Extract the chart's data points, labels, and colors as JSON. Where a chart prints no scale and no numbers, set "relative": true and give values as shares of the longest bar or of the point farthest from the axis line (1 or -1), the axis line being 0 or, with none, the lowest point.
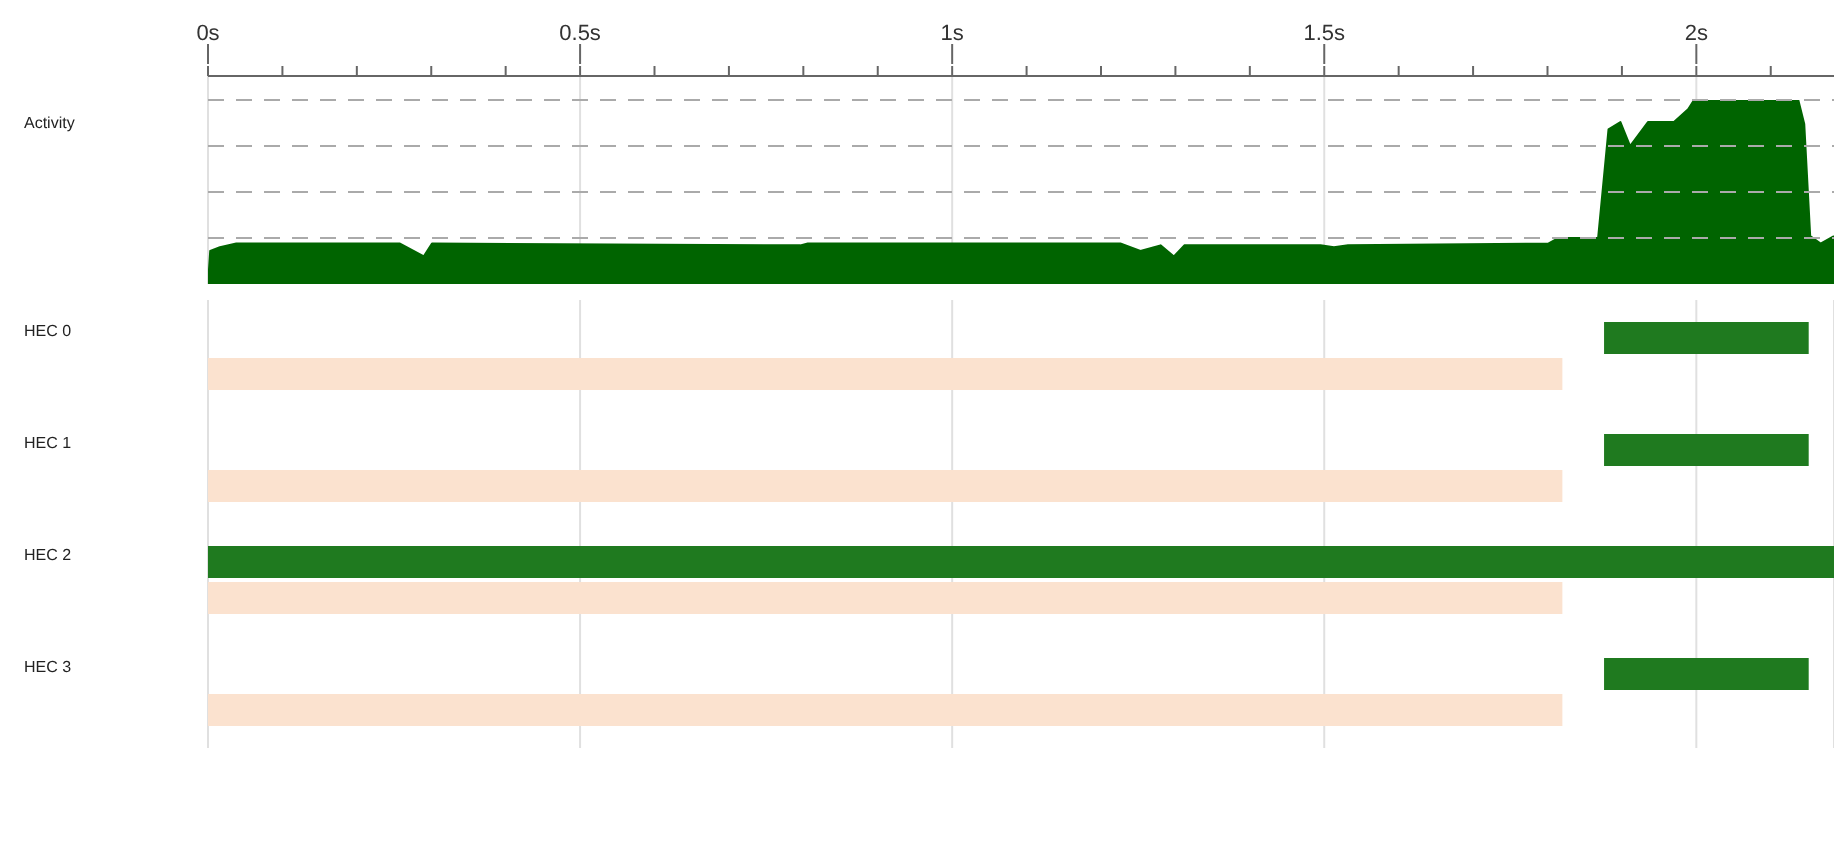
{
  "chart_data": [
    {
      "type": "area",
      "ylabel": "Activity",
      "relative": true,
      "grid": "x",
      "color": "#006400",
      "x": [
        0,
        0.003,
        0.016,
        0.038,
        0.258,
        0.29,
        0.301,
        0.796,
        0.806,
        1.0,
        1.226,
        1.253,
        1.28,
        1.298,
        1.312,
        1.495,
        1.513,
        1.532,
        1.801,
        1.815,
        1.868,
        1.882,
        1.898,
        1.911,
        1.935,
        1.97,
        1.989,
        1.997,
        2.137,
        2.145,
        2.153,
        2.167,
        2.185
      ],
      "values": [
        0,
        0.18,
        0.2,
        0.22,
        0.22,
        0.15,
        0.22,
        0.21,
        0.22,
        0.22,
        0.22,
        0.18,
        0.21,
        0.15,
        0.21,
        0.21,
        0.2,
        0.21,
        0.22,
        0.25,
        0.25,
        0.84,
        0.88,
        0.75,
        0.88,
        0.88,
        0.95,
        1.0,
        1.0,
        0.87,
        0.26,
        0.22,
        0.26
      ],
      "xlim": [
        0,
        2.185
      ],
      "xticks": [
        {
          "value": 0,
          "label": "0s"
        },
        {
          "value": 0.1,
          "label": null
        },
        {
          "value": 0.2,
          "label": null
        },
        {
          "value": 0.3,
          "label": null
        },
        {
          "value": 0.4,
          "label": null
        },
        {
          "value": 0.5,
          "label": "0.5s"
        },
        {
          "value": 0.6,
          "label": null
        },
        {
          "value": 0.7,
          "label": null
        },
        {
          "value": 0.8,
          "label": null
        },
        {
          "value": 0.9,
          "label": null
        },
        {
          "value": 1,
          "label": "1s"
        },
        {
          "value": 1.1,
          "label": null
        },
        {
          "value": 1.2,
          "label": null
        },
        {
          "value": 1.3,
          "label": null
        },
        {
          "value": 1.4,
          "label": null
        },
        {
          "value": 1.5,
          "label": "1.5s"
        },
        {
          "value": 1.6,
          "label": null
        },
        {
          "value": 1.7,
          "label": null
        },
        {
          "value": 1.8,
          "label": null
        },
        {
          "value": 1.9,
          "label": null
        },
        {
          "value": 2,
          "label": "2s"
        },
        {
          "value": 2.1,
          "label": null
        }
      ],
      "ref_lines": [
        {
          "axis": "y",
          "value": 0.25,
          "color": "#aaaaaa",
          "line_style": "dashed"
        },
        {
          "axis": "y",
          "value": 0.5,
          "color": "#aaaaaa",
          "line_style": "dashed"
        },
        {
          "axis": "y",
          "value": 0.75,
          "color": "#aaaaaa",
          "line_style": "dashed"
        },
        {
          "axis": "y",
          "value": 1,
          "color": "#aaaaaa",
          "line_style": "dashed"
        }
      ]
    },
    {
      "type": "bar",
      "orientation": "horizontal",
      "categories": [
        "HEC 0",
        "HEC 1",
        "HEC 2",
        "HEC 3"
      ],
      "grid": "x",
      "tick_labels": "y",
      "xlim": [
        0,
        2.185
      ],
      "xticks": [
        0,
        0.5,
        1,
        1.5,
        2
      ],
      "series": [
        {
          "color": "#1f7a1f",
          "base": [
            1.876,
            1.876,
            0,
            1.876
          ],
          "values": [
            0.275,
            0.275,
            2.185,
            0.275
          ]
        },
        {
          "color": "#fbe2cf",
          "base": [
            0,
            0,
            0,
            0
          ],
          "values": [
            1.82,
            1.82,
            1.82,
            1.82
          ]
        }
      ]
    }
  ]
}
